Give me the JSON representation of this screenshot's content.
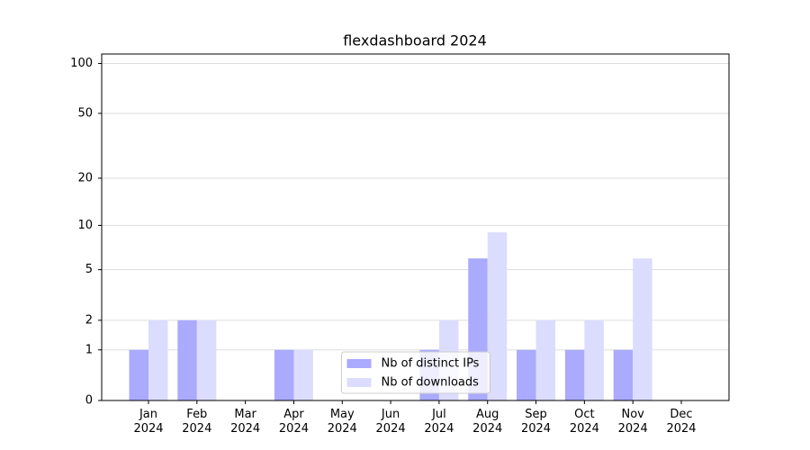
{
  "chart_data": {
    "type": "bar",
    "title": "flexdashboard 2024",
    "categories": [
      "Jan 2024",
      "Feb 2024",
      "Mar 2024",
      "Apr 2024",
      "May 2024",
      "Jun 2024",
      "Jul 2024",
      "Aug 2024",
      "Sep 2024",
      "Oct 2024",
      "Nov 2024",
      "Dec 2024"
    ],
    "series": [
      {
        "name": "Nb of distinct IPs",
        "color": "#aaaaff",
        "values": [
          1,
          2,
          0,
          1,
          0,
          0,
          1,
          6,
          1,
          1,
          1,
          0
        ]
      },
      {
        "name": "Nb of downloads",
        "color": "#dcdcff",
        "values": [
          2,
          2,
          0,
          1,
          0,
          0,
          2,
          9,
          2,
          2,
          6,
          0
        ]
      }
    ],
    "yscale": "log1p",
    "ylim": [
      0,
      114
    ],
    "yticks": [
      0,
      1,
      2,
      5,
      10,
      20,
      50,
      100
    ],
    "grid": true,
    "legend": "lower center"
  }
}
